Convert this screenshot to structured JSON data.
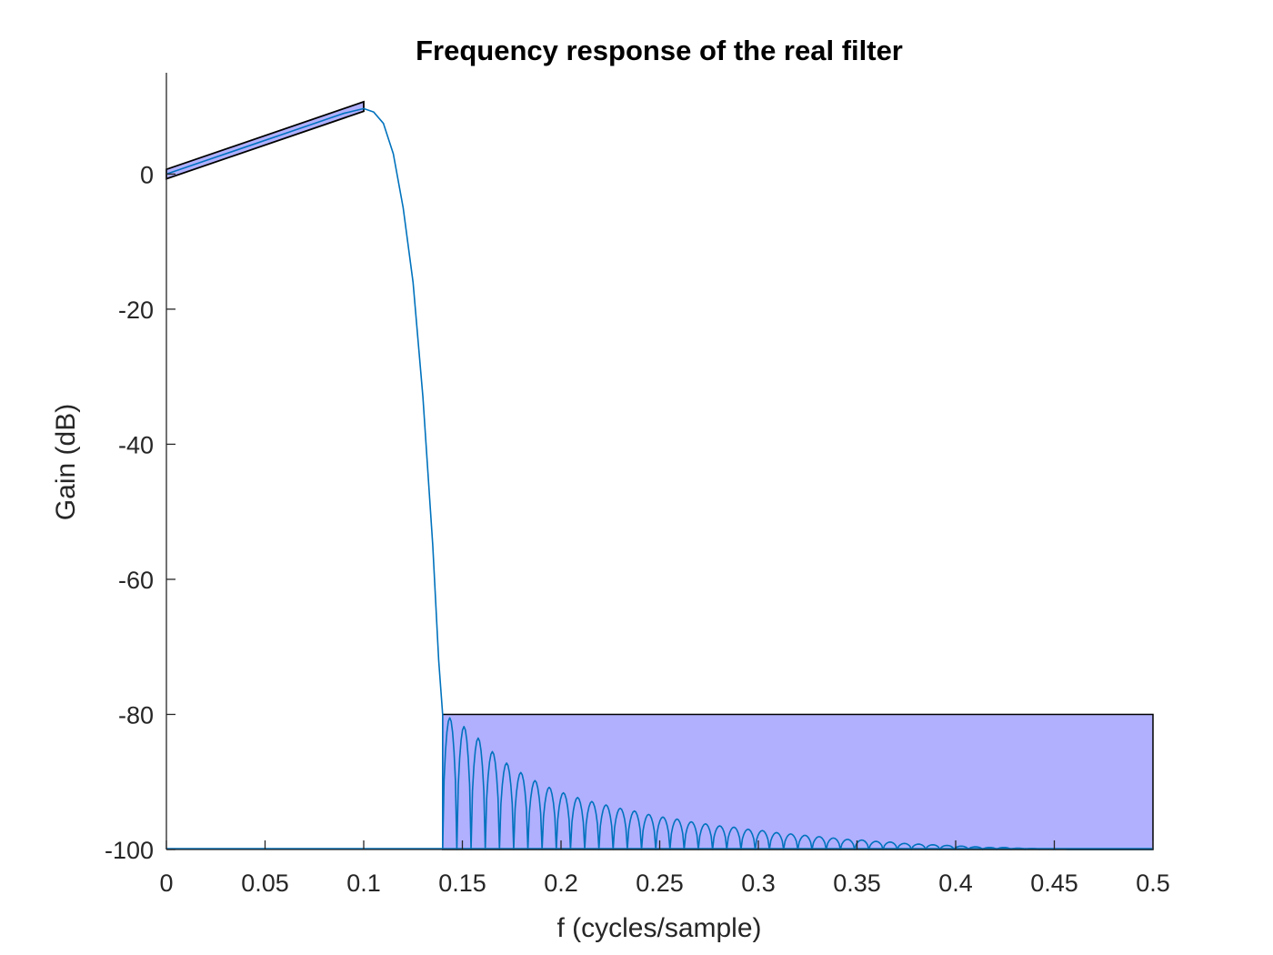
{
  "chart_data": {
    "type": "line",
    "title": "Frequency response of the real filter",
    "xlabel": "f (cycles/sample)",
    "ylabel": "Gain (dB)",
    "xlim": [
      0,
      0.5
    ],
    "ylim": [
      -100,
      15
    ],
    "grid": false,
    "x_ticks": [
      0,
      0.05,
      0.1,
      0.15,
      0.2,
      0.25,
      0.3,
      0.35,
      0.4,
      0.45,
      0.5
    ],
    "x_tick_labels": [
      "0",
      "0.05",
      "0.1",
      "0.15",
      "0.2",
      "0.25",
      "0.3",
      "0.35",
      "0.4",
      "0.45",
      "0.5"
    ],
    "y_ticks": [
      -100,
      -80,
      -60,
      -40,
      -20,
      0
    ],
    "y_tick_labels": [
      "-100",
      "-80",
      "-60",
      "-40",
      "-20",
      "0"
    ],
    "colors": {
      "response": "#0072BD",
      "region_fill": "#B0B0FF",
      "region_edge": "#000000",
      "axis": "#262626"
    },
    "passband": {
      "f_start": 0,
      "f_end": 0.1,
      "gain_start_db": 0,
      "gain_end_db": 10,
      "tolerance_db": 0.7
    },
    "stopband": {
      "f_start": 0.14,
      "f_end": 0.5,
      "max_gain_db": -80
    },
    "series": [
      {
        "type": "response",
        "passband_points": [
          [
            0,
            0
          ],
          [
            0.02,
            2
          ],
          [
            0.04,
            4
          ],
          [
            0.06,
            6
          ],
          [
            0.08,
            8
          ],
          [
            0.09,
            9
          ],
          [
            0.1,
            9.7
          ],
          [
            0.105,
            9.2
          ],
          [
            0.11,
            7.5
          ],
          [
            0.115,
            3
          ],
          [
            0.12,
            -5
          ],
          [
            0.125,
            -16
          ],
          [
            0.13,
            -33
          ],
          [
            0.135,
            -55
          ],
          [
            0.138,
            -72
          ],
          [
            0.14,
            -80
          ]
        ],
        "stopband_lobe_peaks_db": [
          -80.5,
          -81.8,
          -83.5,
          -85.5,
          -87.2,
          -88.6,
          -89.8,
          -90.8,
          -91.6,
          -92.3,
          -92.9,
          -93.4,
          -93.9,
          -94.3,
          -94.8,
          -95.2,
          -95.5,
          -95.9,
          -96.2,
          -96.5,
          -96.7,
          -97.0,
          -97.2,
          -97.5,
          -97.7,
          -97.9,
          -98.1,
          -98.3,
          -98.5,
          -98.6,
          -98.8,
          -98.9,
          -99.1,
          -99.2,
          -99.3,
          -99.4,
          -99.5,
          -99.6,
          -99.7,
          -99.7,
          -99.8,
          -99.85,
          -99.9,
          -99.95,
          -100,
          -100,
          -100,
          -100,
          -100,
          -100
        ],
        "floor_db": -100
      }
    ]
  }
}
